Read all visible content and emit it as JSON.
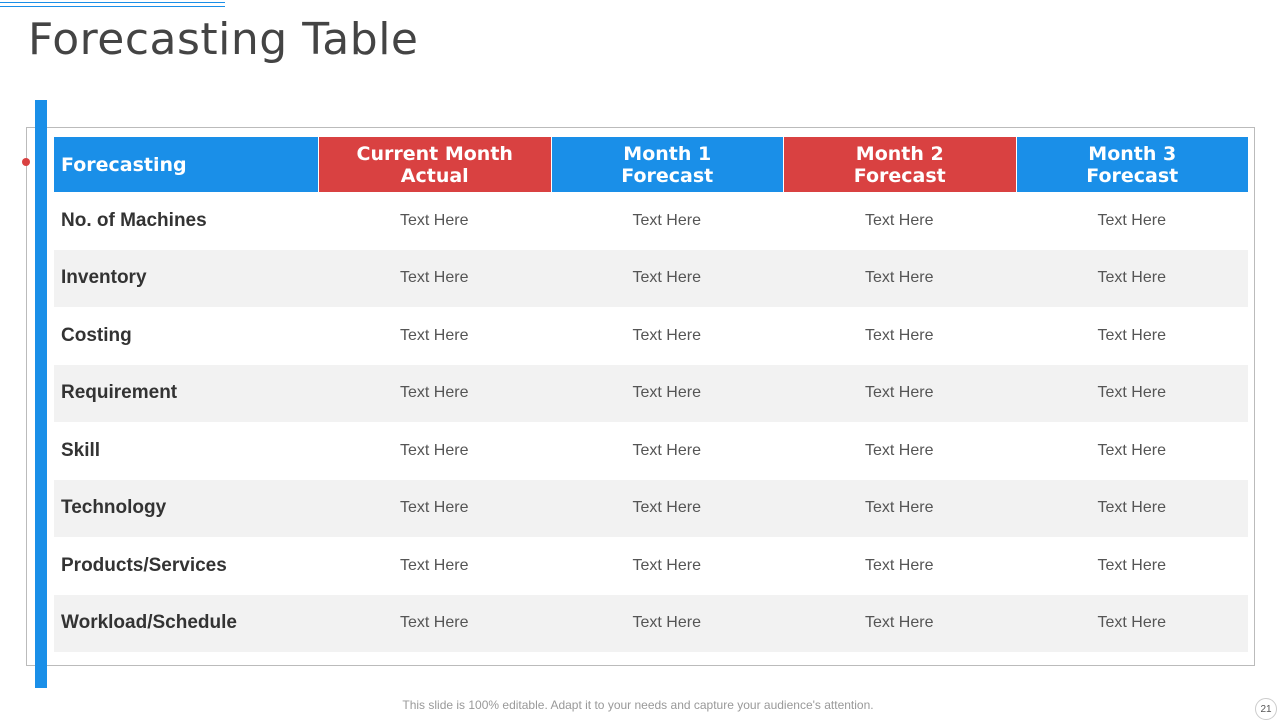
{
  "header": {
    "title": "Forecasting Table"
  },
  "table": {
    "columns": [
      "Forecasting",
      "Current Month Actual",
      "Month 1 Forecast",
      "Month 2 Forecast",
      "Month 3 Forecast"
    ],
    "rows": [
      [
        "No. of Machines",
        "Text Here",
        "Text Here",
        "Text Here",
        "Text Here"
      ],
      [
        "Inventory",
        "Text Here",
        "Text Here",
        "Text Here",
        "Text Here"
      ],
      [
        "Costing",
        "Text Here",
        "Text Here",
        "Text Here",
        "Text Here"
      ],
      [
        "Requirement",
        "Text Here",
        "Text Here",
        "Text Here",
        "Text Here"
      ],
      [
        "Skill",
        "Text Here",
        "Text Here",
        "Text Here",
        "Text Here"
      ],
      [
        "Technology",
        "Text Here",
        "Text Here",
        "Text Here",
        "Text Here"
      ],
      [
        "Products/Services",
        "Text Here",
        "Text Here",
        "Text Here",
        "Text Here"
      ],
      [
        "Workload/Schedule",
        "Text Here",
        "Text Here",
        "Text Here",
        "Text Here"
      ]
    ]
  },
  "footer": {
    "note": "This slide is 100% editable. Adapt it to your needs and capture your audience's attention.",
    "page_number": "21"
  }
}
